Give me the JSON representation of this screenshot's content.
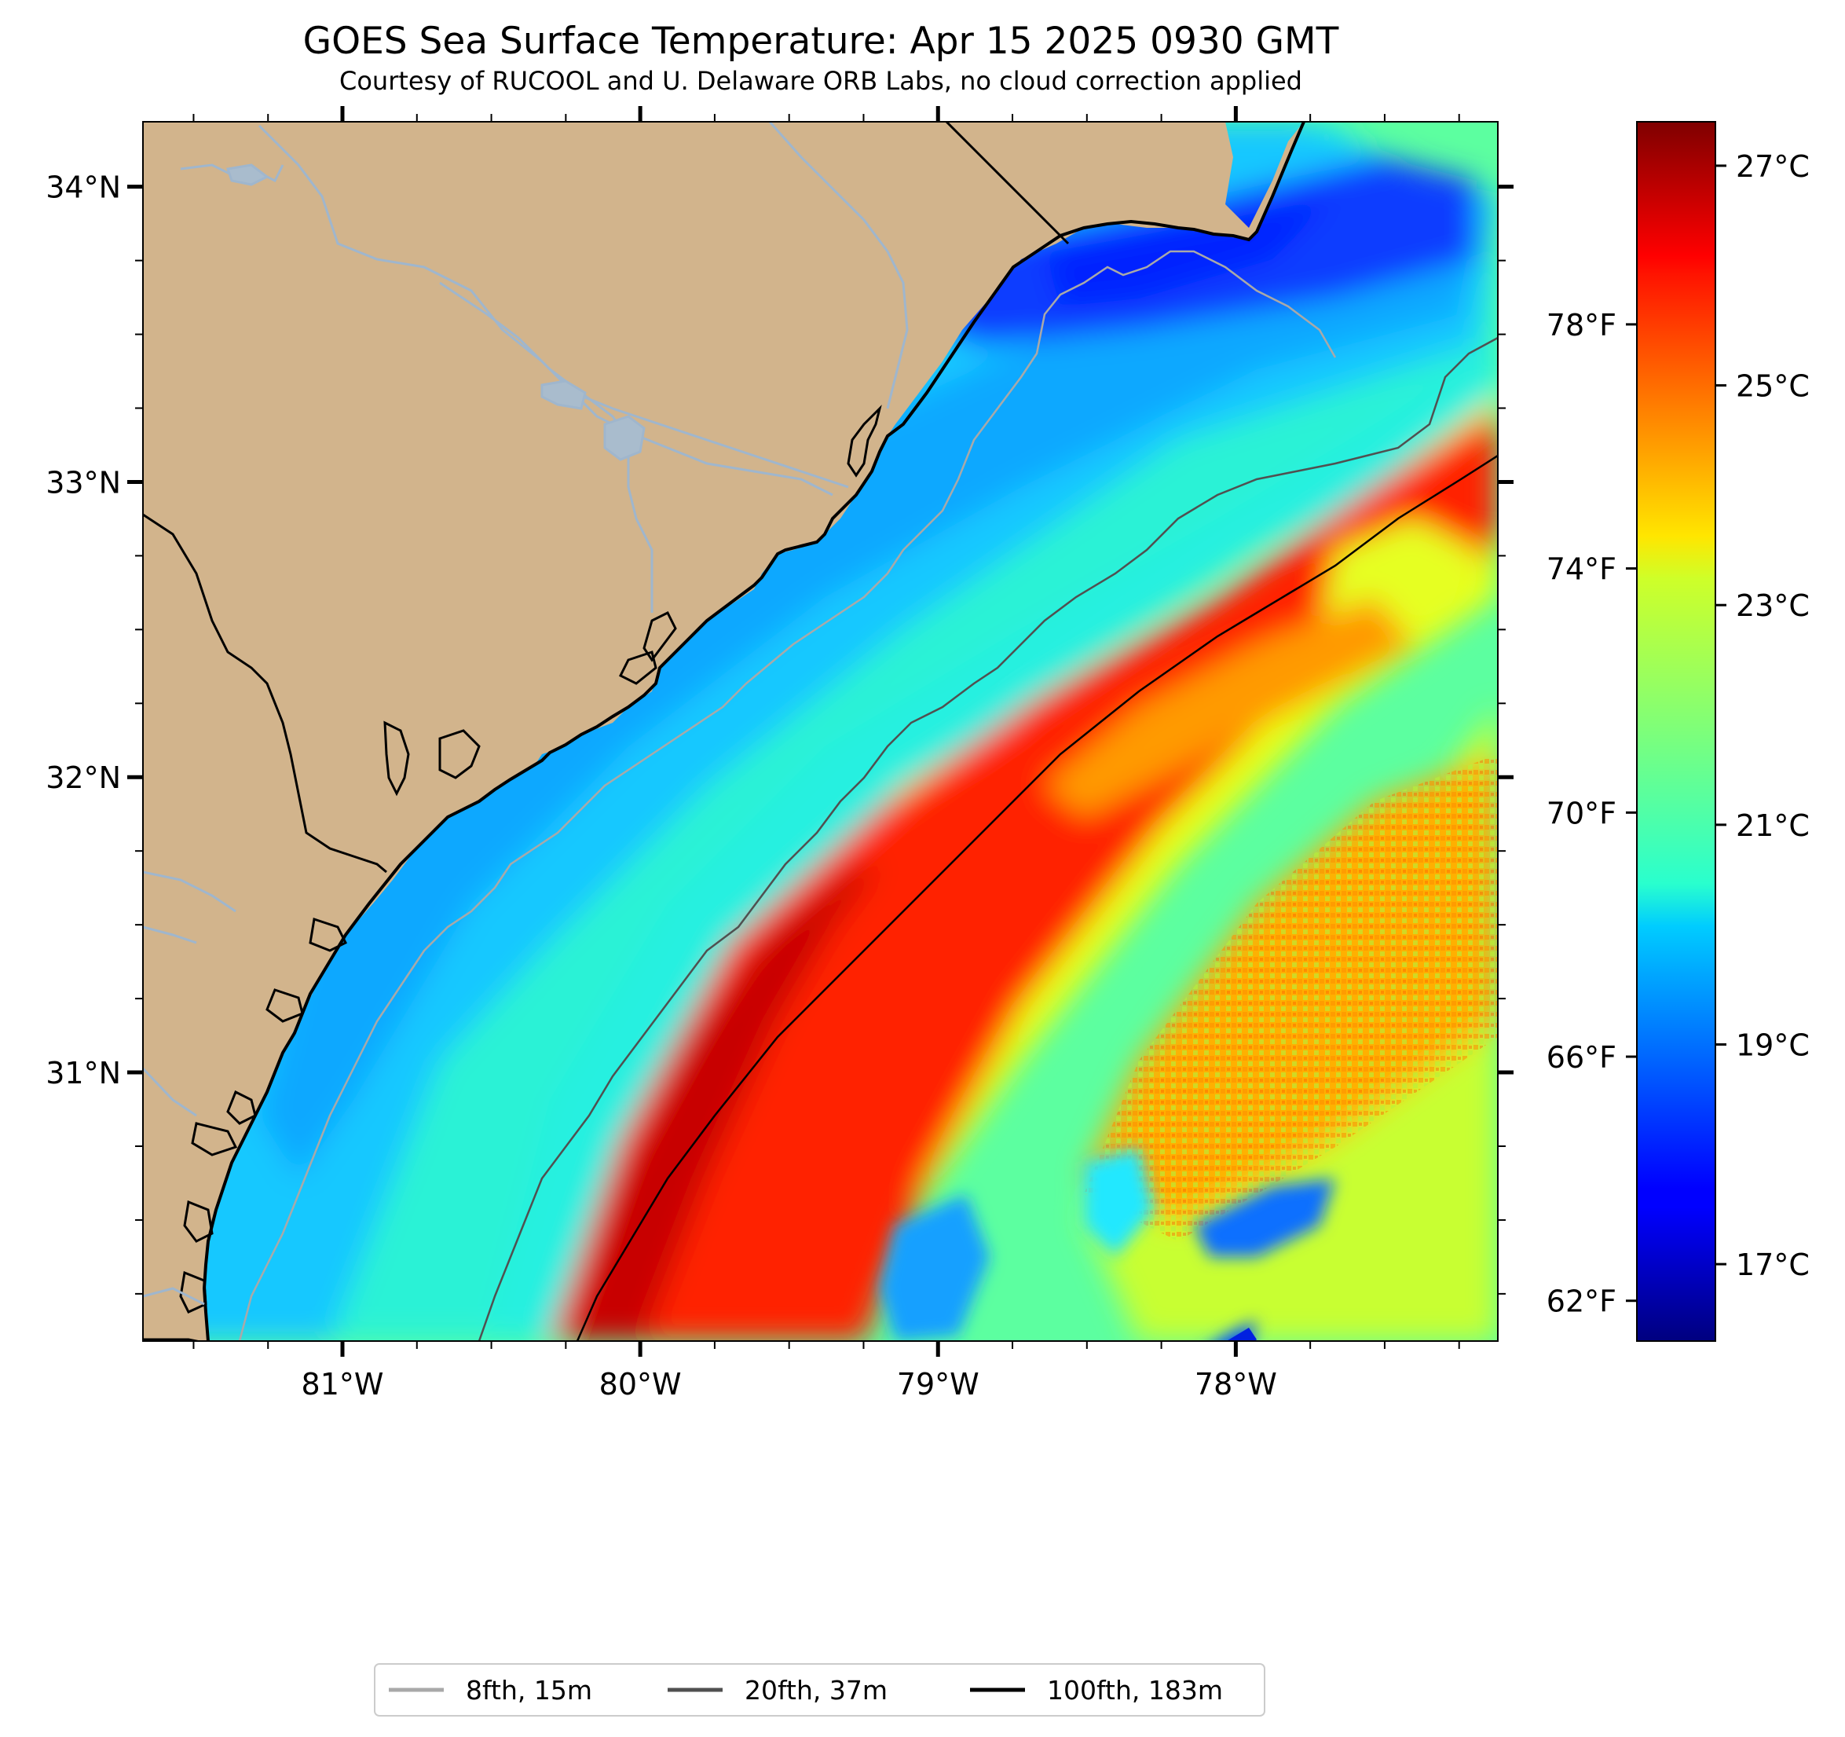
{
  "title": "GOES Sea Surface Temperature: Apr 15 2025 0930 GMT",
  "subtitle": "Courtesy of RUCOOL and U. Delaware ORB Labs, no cloud correction applied",
  "map": {
    "lon_range": [
      -81.67,
      -77.12
    ],
    "lat_range": [
      30.09,
      34.22
    ],
    "lat_ticks": [
      {
        "value": 34,
        "label": "34°N"
      },
      {
        "value": 33,
        "label": "33°N"
      },
      {
        "value": 32,
        "label": "32°N"
      },
      {
        "value": 31,
        "label": "31°N"
      }
    ],
    "lon_ticks": [
      {
        "value": -81,
        "label": "81°W"
      },
      {
        "value": -80,
        "label": "80°W"
      },
      {
        "value": -79,
        "label": "79°W"
      },
      {
        "value": -78,
        "label": "78°W"
      }
    ],
    "land_color": "#d2b48c",
    "river_color": "#9fb6cd",
    "state_border_color": "#000000"
  },
  "colorbar": {
    "colormap": "jet",
    "range_c": [
      16.3,
      27.4
    ],
    "celsius_ticks": [
      {
        "value": 27,
        "label": "27°C"
      },
      {
        "value": 25,
        "label": "25°C"
      },
      {
        "value": 23,
        "label": "23°C"
      },
      {
        "value": 21,
        "label": "21°C"
      },
      {
        "value": 19,
        "label": "19°C"
      },
      {
        "value": 17,
        "label": "17°C"
      }
    ],
    "fahrenheit_ticks": [
      {
        "value": 78,
        "label": "78°F"
      },
      {
        "value": 74,
        "label": "74°F"
      },
      {
        "value": 70,
        "label": "70°F"
      },
      {
        "value": 66,
        "label": "66°F"
      },
      {
        "value": 62,
        "label": "62°F"
      }
    ]
  },
  "legend": [
    {
      "label": "8fth, 15m",
      "color": "#a9a9a9"
    },
    {
      "label": "20fth, 37m",
      "color": "#505050"
    },
    {
      "label": "100fth, 183m",
      "color": "#000000"
    }
  ]
}
